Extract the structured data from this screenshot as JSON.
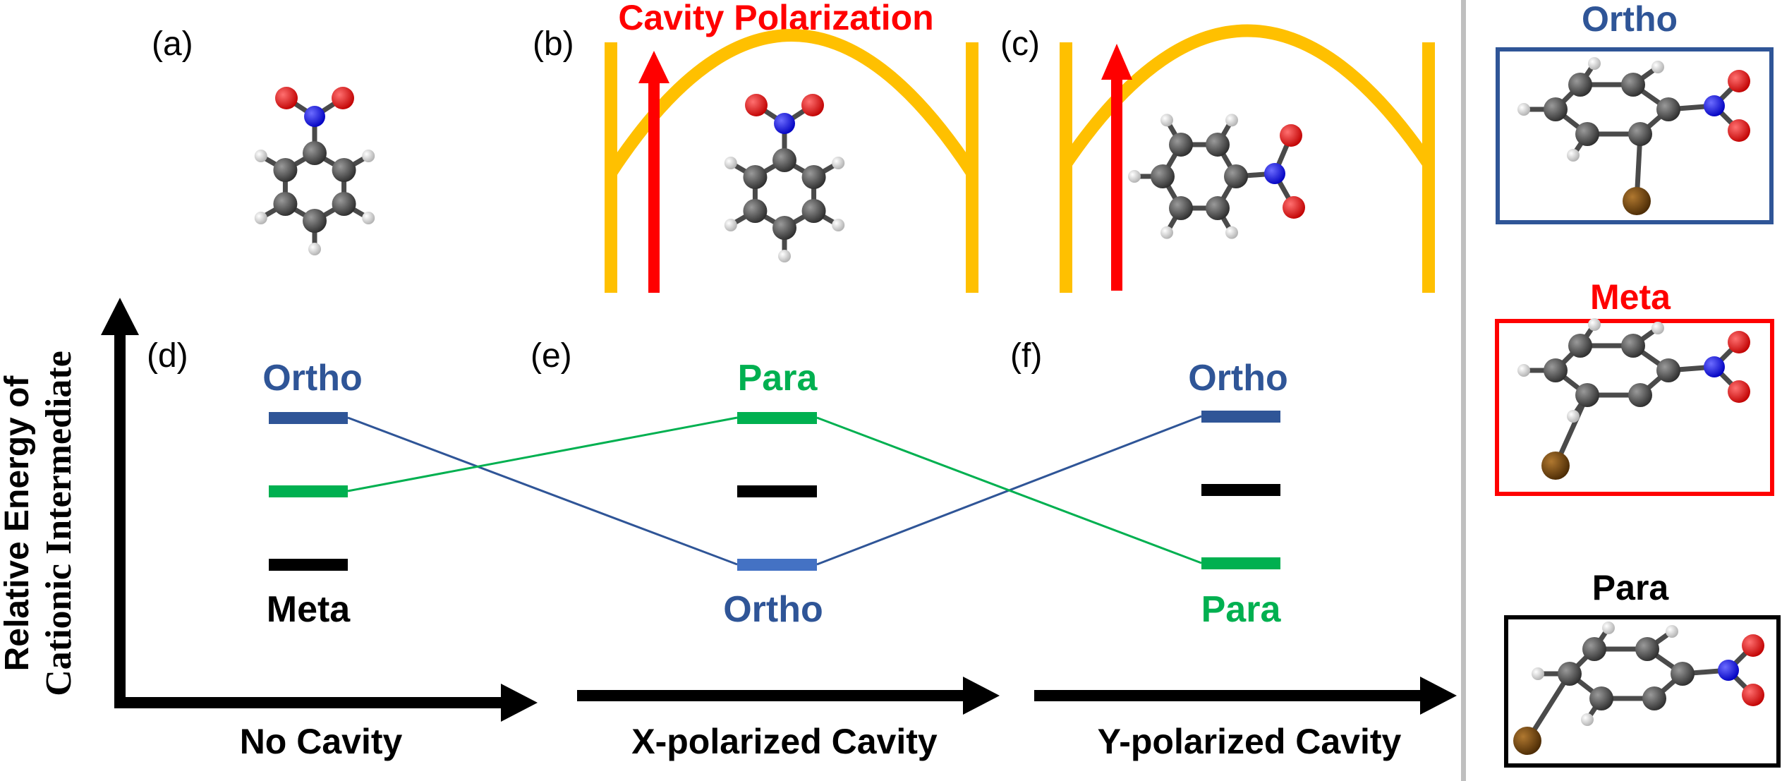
{
  "panels": {
    "a": "(a)",
    "b": "(b)",
    "c": "(c)",
    "d": "(d)",
    "e": "(e)",
    "f": "(f)"
  },
  "cavity_title": "Cavity Polarization",
  "y_axis": {
    "line1": "Relative Energy of",
    "line2": "Cationic Intermediate"
  },
  "x_labels": [
    "No Cavity",
    "X-polarized Cavity",
    "Y-polarized Cavity"
  ],
  "levels": {
    "d": {
      "top_label": "Ortho",
      "bottom_label": "Meta"
    },
    "e": {
      "top_label": "Para",
      "bottom_label": "Ortho"
    },
    "f": {
      "top_label": "Ortho",
      "bottom_label": "Para"
    }
  },
  "side": {
    "ortho": "Ortho",
    "meta": "Meta",
    "para": "Para"
  },
  "colors": {
    "ortho": "#2f5597",
    "para": "#00b050",
    "meta": "#000000",
    "red": "#ff0000",
    "gold": "#ffc000",
    "carbon": "#404040",
    "nitrogen": "#0000ff",
    "oxygen": "#ee0000",
    "hydrogen": "#e8e8e8",
    "bromine": "#7a4a08",
    "divider": "#bfbfbf"
  }
}
